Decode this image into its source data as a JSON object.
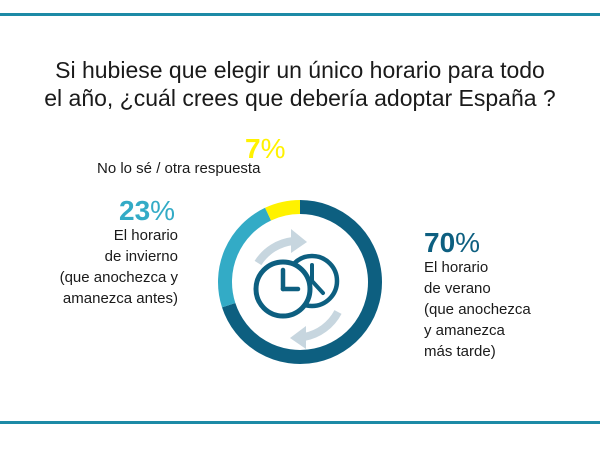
{
  "title": {
    "line1": "Si hubiese que elegir un único horario para todo",
    "line2": "el año, ¿cuál crees que debería adoptar España ?"
  },
  "chart_data": {
    "type": "pie",
    "title": "Si hubiese que elegir un único horario para todo el año, ¿cuál crees que debería adoptar España ?",
    "slices": [
      {
        "name": "El horario de verano (que anochezca y amanezca más tarde)",
        "value": 70,
        "label": "70",
        "percent_sign": "%",
        "lines": [
          "El horario",
          "de verano",
          "(que anochezca",
          "y amanezca",
          "más tarde)"
        ],
        "color": "#0d5f80"
      },
      {
        "name": "El horario de invierno (que anochezca y amanezca antes)",
        "value": 23,
        "label": "23",
        "percent_sign": "%",
        "lines": [
          "El horario",
          "de invierno",
          "(que anochezca y",
          "amanezca antes)"
        ],
        "color": "#33abc6"
      },
      {
        "name": "No lo sé / otra respuesta",
        "value": 7,
        "label": "7",
        "percent_sign": "%",
        "lines": [
          "No lo sé / otra respuesta"
        ],
        "color": "#fff200"
      }
    ]
  },
  "colors": {
    "rule": "#1c8aa6",
    "icon": "#0d5f80",
    "icon_light": "#c7d6df",
    "text": "#1a1a1a"
  }
}
